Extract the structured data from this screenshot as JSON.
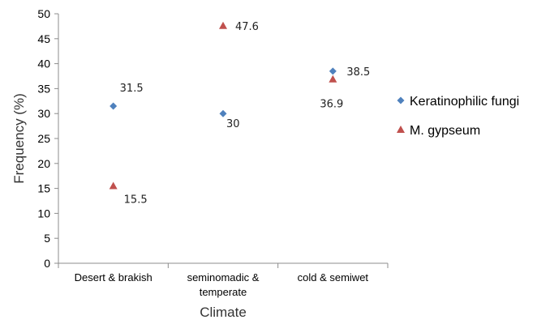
{
  "chart_data": {
    "type": "scatter",
    "xlabel": "Climate",
    "ylabel": "Frequency (%)",
    "ylim": [
      0,
      50
    ],
    "yticks": [
      "0",
      "5",
      "10",
      "15",
      "20",
      "25",
      "30",
      "35",
      "40",
      "45",
      "50"
    ],
    "grid": false,
    "legend_position": "right",
    "categories": [
      {
        "lines": [
          "Desert & brakish"
        ]
      },
      {
        "lines": [
          "seminomadic &",
          "temperate"
        ]
      },
      {
        "lines": [
          "cold & semiwet"
        ]
      }
    ],
    "series": [
      {
        "name": "Keratinophilic fungi",
        "marker": "diamond",
        "color": "#4f81bd",
        "values": [
          31.5,
          30,
          38.5
        ],
        "labels": [
          "31.5",
          "30",
          "38.5"
        ]
      },
      {
        "name": "M. gypseum",
        "marker": "triangle",
        "color": "#c0504d",
        "values": [
          15.5,
          47.6,
          36.9
        ],
        "labels": [
          "15.5",
          "47.6",
          "36.9"
        ]
      }
    ]
  }
}
